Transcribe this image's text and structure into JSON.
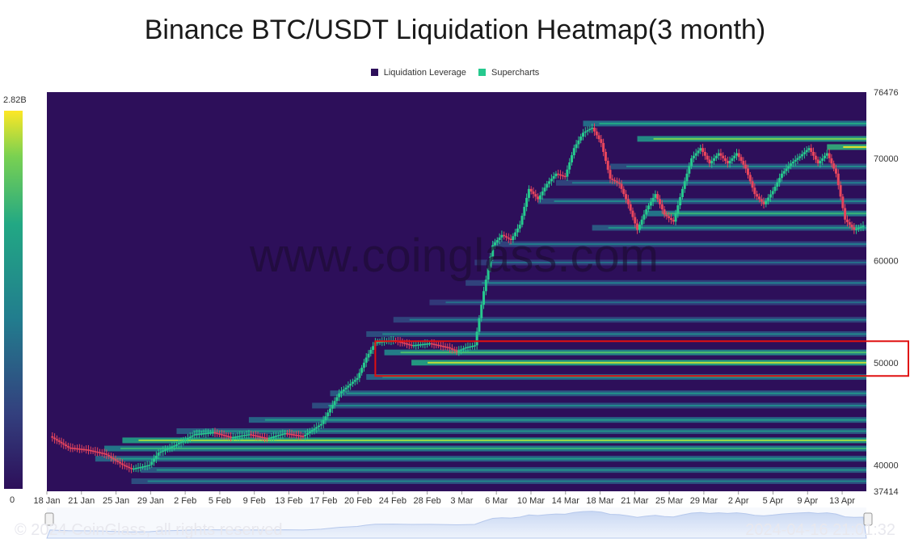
{
  "chart_data": {
    "type": "heatmap",
    "title": "Binance BTC/USDT Liquidation Heatmap(3 month)",
    "legend": [
      {
        "name": "Liquidation Leverage",
        "color": "#2d0f5a"
      },
      {
        "name": "Supercharts",
        "color": "#26c98e"
      }
    ],
    "colorbar": {
      "max_label": "2.82B",
      "min_label": "0",
      "colors": [
        "#2d0f5a",
        "#33407e",
        "#227d8e",
        "#22a884",
        "#7ad151",
        "#fde725"
      ]
    },
    "x_ticks": [
      "18 Jan",
      "21 Jan",
      "25 Jan",
      "29 Jan",
      "2 Feb",
      "5 Feb",
      "9 Feb",
      "13 Feb",
      "17 Feb",
      "20 Feb",
      "24 Feb",
      "28 Feb",
      "3 Mar",
      "6 Mar",
      "10 Mar",
      "14 Mar",
      "18 Mar",
      "21 Mar",
      "25 Mar",
      "29 Mar",
      "2 Apr",
      "5 Apr",
      "9 Apr",
      "13 Apr"
    ],
    "y_ticks": [
      {
        "label": "76476",
        "value": 76476
      },
      {
        "label": "70000",
        "value": 70000
      },
      {
        "label": "60000",
        "value": 60000
      },
      {
        "label": "50000",
        "value": 50000
      },
      {
        "label": "40000",
        "value": 40000
      },
      {
        "label": "37414",
        "value": 37414
      }
    ],
    "ylim": [
      37414,
      76476
    ],
    "price_path": [
      [
        0,
        42800
      ],
      [
        2,
        41700
      ],
      [
        4,
        41500
      ],
      [
        6,
        41100
      ],
      [
        8,
        40000
      ],
      [
        9,
        39600
      ],
      [
        11,
        40000
      ],
      [
        12,
        41200
      ],
      [
        14,
        42000
      ],
      [
        16,
        43000
      ],
      [
        18,
        43200
      ],
      [
        20,
        42700
      ],
      [
        22,
        43000
      ],
      [
        24,
        42600
      ],
      [
        26,
        43100
      ],
      [
        28,
        42800
      ],
      [
        30,
        44000
      ],
      [
        32,
        47000
      ],
      [
        34,
        48500
      ],
      [
        35,
        50500
      ],
      [
        36,
        52000
      ],
      [
        38,
        52200
      ],
      [
        40,
        51700
      ],
      [
        42,
        51900
      ],
      [
        44,
        51500
      ],
      [
        45,
        51100
      ],
      [
        46,
        51500
      ],
      [
        47,
        51700
      ],
      [
        48,
        57000
      ],
      [
        49,
        61500
      ],
      [
        50,
        62500
      ],
      [
        51,
        62000
      ],
      [
        52,
        63500
      ],
      [
        53,
        67000
      ],
      [
        54,
        66000
      ],
      [
        55,
        67500
      ],
      [
        56,
        68500
      ],
      [
        57,
        68200
      ],
      [
        58,
        71000
      ],
      [
        59,
        72500
      ],
      [
        60,
        73000
      ],
      [
        61,
        71500
      ],
      [
        62,
        68000
      ],
      [
        63,
        67500
      ],
      [
        64,
        65500
      ],
      [
        65,
        63000
      ],
      [
        66,
        65000
      ],
      [
        67,
        66500
      ],
      [
        68,
        64500
      ],
      [
        69,
        63800
      ],
      [
        70,
        67000
      ],
      [
        71,
        70000
      ],
      [
        72,
        71000
      ],
      [
        73,
        69500
      ],
      [
        74,
        70500
      ],
      [
        75,
        69500
      ],
      [
        76,
        70500
      ],
      [
        77,
        69000
      ],
      [
        78,
        66500
      ],
      [
        79,
        65500
      ],
      [
        80,
        66800
      ],
      [
        81,
        68500
      ],
      [
        82,
        69500
      ],
      [
        83,
        70200
      ],
      [
        84,
        71000
      ],
      [
        85,
        69500
      ],
      [
        86,
        70500
      ],
      [
        87,
        68500
      ],
      [
        88,
        64000
      ],
      [
        89,
        63000
      ],
      [
        90,
        63400
      ]
    ],
    "liquidation_bands": [
      {
        "price": 73400,
        "start": 59,
        "intensity": 0.5
      },
      {
        "price": 71900,
        "start": 65,
        "intensity": 0.7
      },
      {
        "price": 71100,
        "start": 86,
        "intensity": 0.85
      },
      {
        "price": 69200,
        "start": 62,
        "intensity": 0.35
      },
      {
        "price": 67600,
        "start": 56,
        "intensity": 0.3
      },
      {
        "price": 65800,
        "start": 54,
        "intensity": 0.35
      },
      {
        "price": 64600,
        "start": 66,
        "intensity": 0.55
      },
      {
        "price": 63200,
        "start": 60,
        "intensity": 0.4
      },
      {
        "price": 61600,
        "start": 49,
        "intensity": 0.3
      },
      {
        "price": 59800,
        "start": 47,
        "intensity": 0.25
      },
      {
        "price": 57800,
        "start": 46,
        "intensity": 0.3
      },
      {
        "price": 55900,
        "start": 42,
        "intensity": 0.25
      },
      {
        "price": 54200,
        "start": 38,
        "intensity": 0.3
      },
      {
        "price": 52800,
        "start": 35,
        "intensity": 0.35
      },
      {
        "price": 51000,
        "start": 37,
        "intensity": 0.6
      },
      {
        "price": 50000,
        "start": 40,
        "intensity": 0.8
      },
      {
        "price": 48600,
        "start": 35,
        "intensity": 0.45
      },
      {
        "price": 47000,
        "start": 31,
        "intensity": 0.4
      },
      {
        "price": 45800,
        "start": 29,
        "intensity": 0.35
      },
      {
        "price": 44400,
        "start": 22,
        "intensity": 0.45
      },
      {
        "price": 43300,
        "start": 14,
        "intensity": 0.4
      },
      {
        "price": 42400,
        "start": 8,
        "intensity": 0.75
      },
      {
        "price": 41600,
        "start": 6,
        "intensity": 0.55
      },
      {
        "price": 40600,
        "start": 5,
        "intensity": 0.45
      },
      {
        "price": 39500,
        "start": 10,
        "intensity": 0.4
      },
      {
        "price": 38400,
        "start": 9,
        "intensity": 0.35
      }
    ],
    "highlight_box": {
      "price_min": 48700,
      "price_max": 52100,
      "start": 36
    },
    "watermark": "www.coinglass.com",
    "footer_left": "© 2024 CoinGlass, all rights reserved",
    "footer_right": "2024-04-16 21:01:32"
  }
}
